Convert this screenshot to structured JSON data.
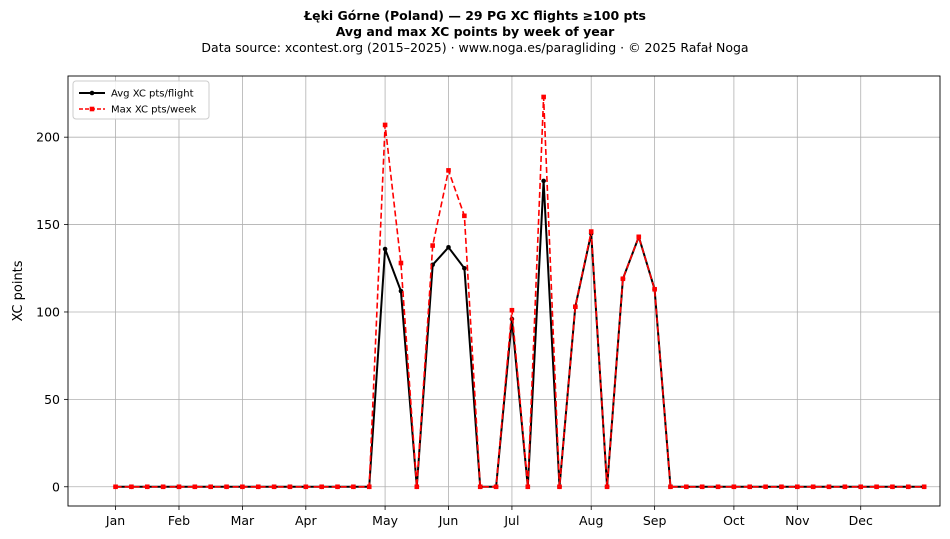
{
  "chart_data": {
    "type": "line",
    "title": "Łęki Górne (Poland)  —  29 PG XC flights ≥100 pts",
    "subtitle": "Avg and max XC points by week of year",
    "source_note": "Data source: xcontest.org (2015–2025)  ·  www.noga.es/paragliding  ·  © 2025 Rafał Noga",
    "xlabel": "",
    "ylabel": "XC points",
    "x_unit": "week of year",
    "xlim": [
      -2,
      53
    ],
    "ylim": [
      -11,
      235
    ],
    "yticks": [
      0,
      50,
      100,
      150,
      200
    ],
    "xticks": [
      {
        "label": "Jan",
        "x": 1
      },
      {
        "label": "Feb",
        "x": 5
      },
      {
        "label": "Mar",
        "x": 9
      },
      {
        "label": "Apr",
        "x": 13
      },
      {
        "label": "May",
        "x": 18
      },
      {
        "label": "Jun",
        "x": 22
      },
      {
        "label": "Jul",
        "x": 26
      },
      {
        "label": "Aug",
        "x": 31
      },
      {
        "label": "Sep",
        "x": 35
      },
      {
        "label": "Oct",
        "x": 40
      },
      {
        "label": "Nov",
        "x": 44
      },
      {
        "label": "Dec",
        "x": 48
      }
    ],
    "grid": true,
    "legend_position": "top-left",
    "x": [
      1,
      2,
      3,
      4,
      5,
      6,
      7,
      8,
      9,
      10,
      11,
      12,
      13,
      14,
      15,
      16,
      17,
      18,
      19,
      20,
      21,
      22,
      23,
      24,
      25,
      26,
      27,
      28,
      29,
      30,
      31,
      32,
      33,
      34,
      35,
      36,
      37,
      38,
      39,
      40,
      41,
      42,
      43,
      44,
      45,
      46,
      47,
      48,
      49,
      50,
      51,
      52
    ],
    "series": [
      {
        "name": "Avg XC pts/flight",
        "color": "#000000",
        "style": "solid",
        "marker": "circle",
        "values": [
          0,
          0,
          0,
          0,
          0,
          0,
          0,
          0,
          0,
          0,
          0,
          0,
          0,
          0,
          0,
          0,
          0,
          136,
          112,
          0,
          127,
          137,
          125,
          0,
          0,
          96,
          0,
          175,
          0,
          103,
          145,
          0,
          119,
          143,
          113,
          0,
          0,
          0,
          0,
          0,
          0,
          0,
          0,
          0,
          0,
          0,
          0,
          0,
          0,
          0,
          0,
          0
        ]
      },
      {
        "name": "Max XC pts/week",
        "color": "#ff0000",
        "style": "dashed",
        "marker": "square",
        "values": [
          0,
          0,
          0,
          0,
          0,
          0,
          0,
          0,
          0,
          0,
          0,
          0,
          0,
          0,
          0,
          0,
          0,
          207,
          128,
          0,
          138,
          181,
          155,
          0,
          0,
          101,
          0,
          223,
          0,
          103,
          146,
          0,
          119,
          143,
          113,
          0,
          0,
          0,
          0,
          0,
          0,
          0,
          0,
          0,
          0,
          0,
          0,
          0,
          0,
          0,
          0,
          0
        ]
      }
    ]
  }
}
